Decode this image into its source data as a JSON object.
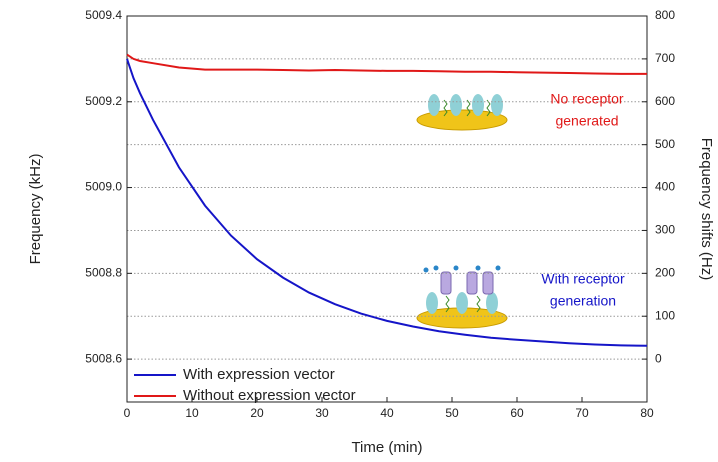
{
  "chart_data": {
    "type": "line",
    "x_label": "Time (min)",
    "y_label": "Frequency (kHz)",
    "y2_label": "Frequency shifts (Hz)",
    "x": [
      0,
      1,
      2,
      4,
      8,
      12,
      16,
      20,
      24,
      28,
      32,
      36,
      40,
      44,
      48,
      52,
      56,
      60,
      64,
      68,
      72,
      76,
      80
    ],
    "series": [
      {
        "name": "With expression vector",
        "color": "#1515c8",
        "values": [
          5009.3,
          5009.255,
          5009.22,
          5009.158,
          5009.047,
          5008.958,
          5008.888,
          5008.833,
          5008.79,
          5008.755,
          5008.728,
          5008.706,
          5008.689,
          5008.676,
          5008.665,
          5008.657,
          5008.65,
          5008.645,
          5008.641,
          5008.637,
          5008.634,
          5008.632,
          5008.631
        ]
      },
      {
        "name": "Without expression vector",
        "color": "#e01818",
        "values": [
          5009.31,
          5009.3,
          5009.295,
          5009.29,
          5009.28,
          5009.275,
          5009.275,
          5009.275,
          5009.274,
          5009.273,
          5009.274,
          5009.273,
          5009.272,
          5009.272,
          5009.271,
          5009.27,
          5009.27,
          5009.269,
          5009.268,
          5009.267,
          5009.266,
          5009.265,
          5009.265
        ]
      }
    ],
    "xlim": [
      0,
      80
    ],
    "xticks": [
      0,
      10,
      20,
      30,
      40,
      50,
      60,
      70,
      80
    ],
    "ylim": [
      5008.5,
      5009.4
    ],
    "yticks": [
      5008.6,
      5008.8,
      {
        "value": 5009,
        "label": "5009.0"
      },
      5009.2,
      5009.4
    ],
    "y2lim": [
      -100,
      800
    ],
    "y2ticks": [
      0,
      100,
      200,
      300,
      400,
      500,
      600,
      700,
      800
    ],
    "grid": true,
    "legend": "lower left",
    "annotations": [
      {
        "lines": [
          "No receptor",
          "generated"
        ],
        "color": "#e01818"
      },
      {
        "lines": [
          "With receptor",
          "generation"
        ],
        "color": "#1515c8"
      }
    ]
  }
}
